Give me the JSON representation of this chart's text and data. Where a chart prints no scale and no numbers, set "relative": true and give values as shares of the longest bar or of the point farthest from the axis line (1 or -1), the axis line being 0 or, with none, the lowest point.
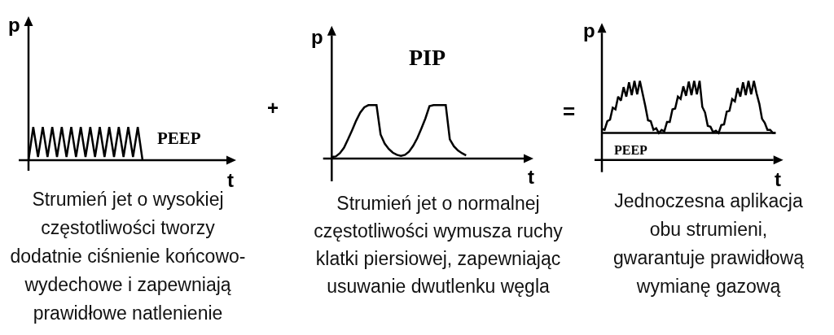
{
  "chart_data": [
    {
      "type": "line",
      "relative": true,
      "xlabel": "t",
      "ylabel": "p",
      "color": "#000000",
      "categories": [
        null,
        null,
        null,
        null,
        null,
        null,
        null,
        null,
        null,
        null,
        null,
        null,
        null,
        null,
        null,
        null,
        null,
        null,
        null,
        null,
        null,
        null,
        null,
        null,
        null
      ],
      "values": [
        0,
        1,
        0.1,
        1,
        0.1,
        1,
        0.1,
        1,
        0.1,
        1,
        0.1,
        1,
        0.1,
        1,
        0.1,
        1,
        0.1,
        1,
        0.1,
        1,
        0.1,
        1,
        0.1,
        1,
        0
      ],
      "annotations": [
        "PEEP",
        "Strumień jet o wysokiej\nczęstotliwości tworzy\ndodatnie ciśnienie końcowo-\nwydechowe i zapewniają\nprawidłowe natlenienie"
      ]
    },
    {
      "type": "line",
      "relative": true,
      "xlabel": "t",
      "ylabel": "p",
      "color": "#000000",
      "categories": [
        null,
        null,
        null,
        null,
        null,
        null,
        null,
        null,
        null,
        null,
        null,
        null,
        null,
        null,
        null,
        null,
        null,
        null,
        null,
        null,
        null,
        null,
        null,
        null,
        null,
        null,
        null,
        null,
        null,
        null,
        null,
        null,
        null,
        null
      ],
      "values": [
        0.03,
        0.04,
        0.1,
        0.2,
        0.36,
        0.53,
        0.71,
        0.86,
        0.96,
        1,
        1,
        1,
        0.45,
        0.28,
        0.18,
        0.11,
        0.07,
        0.05,
        0.07,
        0.13,
        0.24,
        0.38,
        0.56,
        0.75,
        0.98,
        1,
        1,
        1,
        1,
        0.36,
        0.23,
        0.15,
        0.1,
        0.06
      ],
      "annotations": [
        "+",
        "PIP",
        "Strumień jet o normalnej\nczęstotliwości wymusza ruchy\nklatki piersiowej, zapewniając\nusuwanie dwutlenku węgla"
      ]
    },
    {
      "type": "line",
      "relative": true,
      "xlabel": "t",
      "ylabel": "p",
      "color": "#000000",
      "categories": [
        null,
        null,
        null,
        null,
        null,
        null,
        null,
        null,
        null,
        null,
        null,
        null,
        null,
        null,
        null,
        null,
        null,
        null,
        null,
        null,
        null,
        null,
        null,
        null,
        null,
        null,
        null,
        null,
        null,
        null,
        null,
        null,
        null,
        null,
        null,
        null,
        null,
        null,
        null,
        null,
        null,
        null,
        null,
        null,
        null,
        null,
        null,
        null,
        null,
        null,
        null,
        null,
        null,
        null,
        null,
        null,
        null,
        null,
        null,
        null,
        null,
        null,
        null,
        null,
        null
      ],
      "values": [
        0.39,
        0.38,
        0.49,
        0.51,
        0.66,
        0.64,
        0.8,
        0.75,
        0.92,
        0.8,
        0.98,
        0.82,
        1,
        0.83,
        1,
        0.84,
        0.68,
        0.5,
        0.49,
        0.38,
        0.4,
        0.34,
        0.38,
        0.36,
        0.48,
        0.48,
        0.64,
        0.65,
        0.8,
        0.77,
        0.93,
        0.81,
        0.99,
        0.82,
        1,
        0.83,
        1,
        0.67,
        0.6,
        0.43,
        0.42,
        0.35,
        0.37,
        0.34,
        0.44,
        0.45,
        0.61,
        0.62,
        0.77,
        0.74,
        0.91,
        0.8,
        0.98,
        0.82,
        1,
        0.83,
        1,
        0.84,
        0.71,
        0.52,
        0.47,
        0.38,
        0.38,
        0.34,
        0.34
      ],
      "ref_lines": [
        {
          "axis": "y",
          "value": 0.34,
          "label": "PEEP",
          "color": "#000000"
        }
      ],
      "annotations": [
        "=",
        "Jednoczesna aplikacja\nobu strumieni,\ngwarantuje prawidłową\nwymianę gazową"
      ]
    }
  ]
}
